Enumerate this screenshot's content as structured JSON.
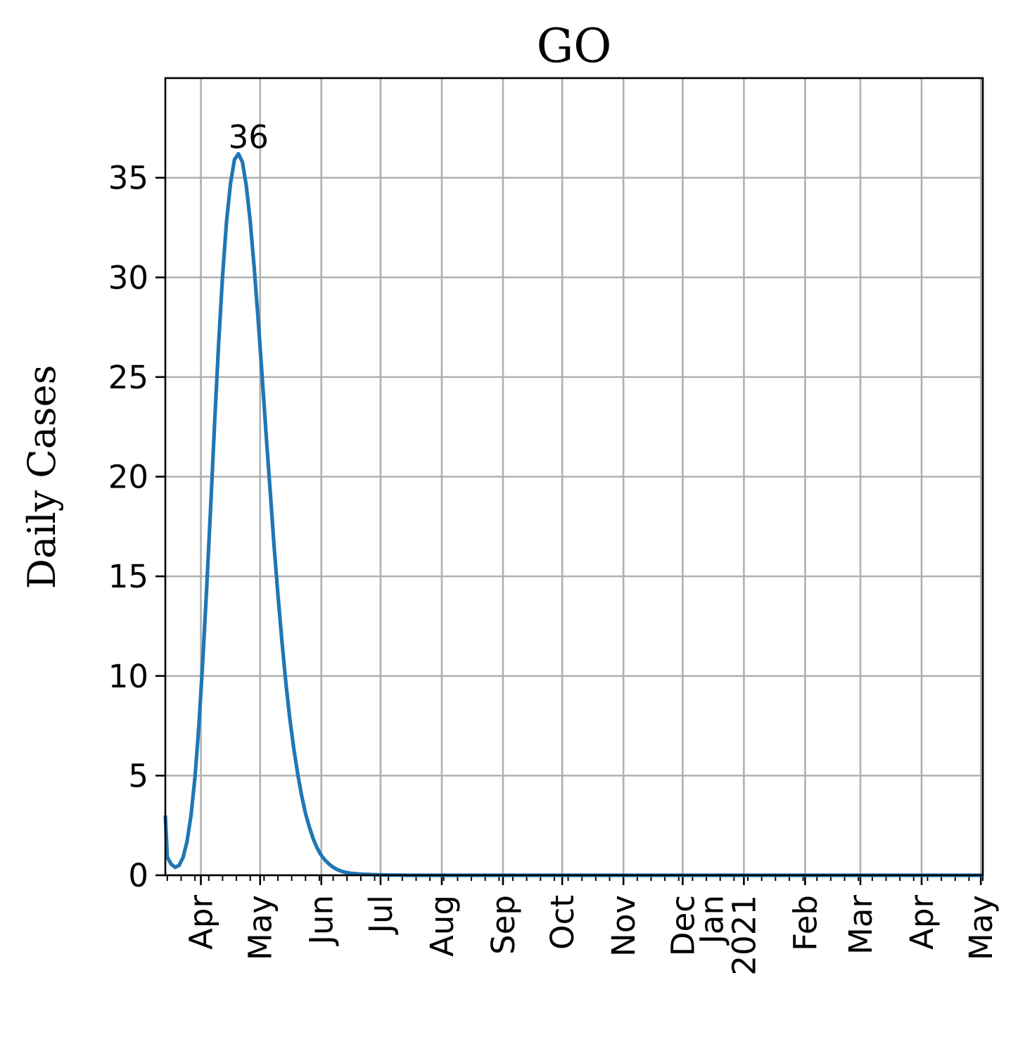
{
  "chart_data": {
    "type": "line",
    "title": "GO",
    "xlabel": "",
    "ylabel": "Daily Cases",
    "ylim": [
      0,
      40
    ],
    "xlim": [
      "2020-03-14",
      "2021-05-02"
    ],
    "grid": true,
    "legend": "none",
    "colors": {
      "series": "#1f77b4"
    },
    "y_ticks": [
      0,
      5,
      10,
      15,
      20,
      25,
      30,
      35
    ],
    "x_ticks": [
      {
        "date": "2020-04-01",
        "label": "Apr"
      },
      {
        "date": "2020-05-01",
        "label": "May"
      },
      {
        "date": "2020-06-01",
        "label": "Jun"
      },
      {
        "date": "2020-07-01",
        "label": "Jul"
      },
      {
        "date": "2020-08-01",
        "label": "Aug"
      },
      {
        "date": "2020-09-01",
        "label": "Sep"
      },
      {
        "date": "2020-10-01",
        "label": "Oct"
      },
      {
        "date": "2020-11-01",
        "label": "Nov"
      },
      {
        "date": "2020-12-01",
        "label": "Dec"
      },
      {
        "date": "2021-01-01",
        "label": "Jan\n2021"
      },
      {
        "date": "2021-02-01",
        "label": "Feb"
      },
      {
        "date": "2021-03-01",
        "label": "Mar"
      },
      {
        "date": "2021-04-01",
        "label": "Apr"
      },
      {
        "date": "2021-05-01",
        "label": "May"
      }
    ],
    "annotation": {
      "date": "2020-04-28",
      "value": 36.2,
      "text": "36"
    },
    "series": [
      {
        "x": [
          "2020-03-14",
          "2020-03-15",
          "2020-03-17",
          "2020-03-19",
          "2020-03-21",
          "2020-03-23",
          "2020-03-25",
          "2020-03-27",
          "2020-03-29",
          "2020-03-31",
          "2020-04-02",
          "2020-04-04",
          "2020-04-06",
          "2020-04-08",
          "2020-04-10",
          "2020-04-12",
          "2020-04-14",
          "2020-04-16",
          "2020-04-18",
          "2020-04-20",
          "2020-04-22",
          "2020-04-24",
          "2020-04-26",
          "2020-04-28",
          "2020-04-30",
          "2020-05-02",
          "2020-05-04",
          "2020-05-06",
          "2020-05-08",
          "2020-05-10",
          "2020-05-12",
          "2020-05-14",
          "2020-05-16",
          "2020-05-18",
          "2020-05-20",
          "2020-05-22",
          "2020-05-24",
          "2020-05-26",
          "2020-05-28",
          "2020-05-30",
          "2020-06-01",
          "2020-06-03",
          "2020-06-05",
          "2020-06-07",
          "2020-06-09",
          "2020-06-11",
          "2020-06-13",
          "2020-06-16",
          "2020-06-19",
          "2020-06-22",
          "2020-06-25",
          "2020-06-28",
          "2020-07-01",
          "2020-07-05",
          "2020-07-10",
          "2020-07-15",
          "2020-07-20",
          "2020-07-25",
          "2020-08-01",
          "2020-08-15",
          "2020-09-01",
          "2020-10-01",
          "2020-11-01",
          "2020-12-01",
          "2021-01-01",
          "2021-02-01",
          "2021-03-01",
          "2021-04-01",
          "2021-05-01",
          "2021-05-02"
        ],
        "y": [
          3.0,
          0.9,
          0.55,
          0.4,
          0.5,
          0.9,
          1.7,
          3.0,
          4.9,
          7.5,
          10.8,
          14.5,
          18.6,
          22.8,
          26.7,
          30.1,
          32.8,
          34.7,
          35.9,
          36.2,
          35.8,
          34.6,
          32.8,
          30.5,
          27.9,
          25.1,
          22.2,
          19.4,
          16.6,
          14.1,
          11.8,
          9.7,
          7.9,
          6.4,
          5.1,
          4.0,
          3.1,
          2.4,
          1.8,
          1.35,
          1.0,
          0.75,
          0.55,
          0.4,
          0.29,
          0.21,
          0.15,
          0.1,
          0.07,
          0.05,
          0.04,
          0.03,
          0.02,
          0.01,
          0.01,
          0.0,
          0.0,
          0.0,
          0.0,
          0.0,
          0.0,
          0.0,
          0.0,
          0.0,
          0.0,
          0.0,
          0.0,
          0.0,
          0.0,
          0.0
        ]
      }
    ]
  }
}
